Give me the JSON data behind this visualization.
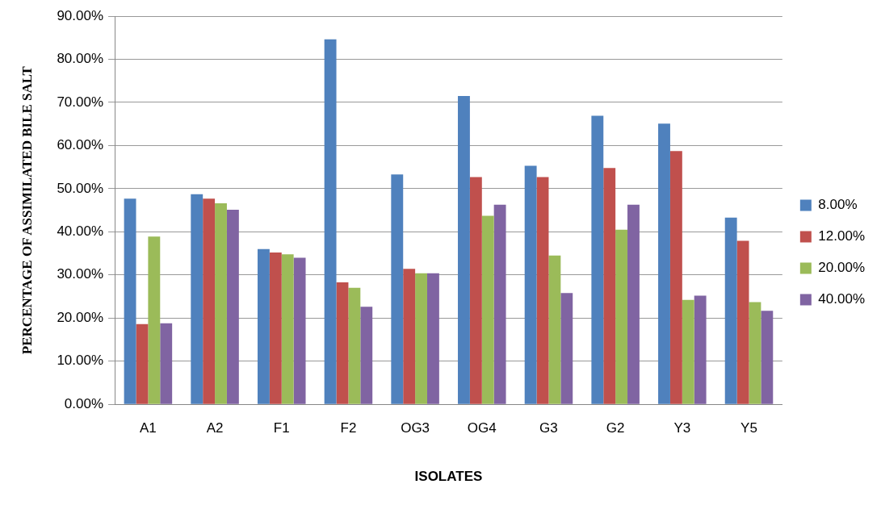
{
  "chart_data": {
    "type": "bar",
    "xlabel": "ISOLATES",
    "ylabel": "PERCENTAGE OF ASSIMILATED BILE SALT",
    "categories": [
      "A1",
      "A2",
      "F1",
      "F2",
      "OG3",
      "OG4",
      "G3",
      "G2",
      "Y3",
      "Y5"
    ],
    "series": [
      {
        "name": "8.00%",
        "color": "#4f81bd",
        "values": [
          47.7,
          48.7,
          36.0,
          84.6,
          53.3,
          71.5,
          55.3,
          66.9,
          65.1,
          43.3
        ]
      },
      {
        "name": "12.00%",
        "color": "#c0504d",
        "values": [
          18.6,
          47.7,
          35.2,
          28.3,
          31.4,
          52.7,
          52.7,
          54.8,
          58.7,
          37.9
        ]
      },
      {
        "name": "20.00%",
        "color": "#9bbb59",
        "values": [
          38.9,
          46.6,
          34.8,
          27.0,
          30.4,
          43.7,
          34.5,
          40.5,
          24.2,
          23.7
        ]
      },
      {
        "name": "40.00%",
        "color": "#8064a2",
        "values": [
          18.8,
          45.1,
          34.0,
          22.6,
          30.4,
          46.3,
          25.8,
          46.3,
          25.2,
          21.7
        ]
      }
    ],
    "ylim": [
      0,
      90
    ],
    "yticks": [
      {
        "value": 0,
        "label": "0.00%"
      },
      {
        "value": 10,
        "label": "10.00%"
      },
      {
        "value": 20,
        "label": "20.00%"
      },
      {
        "value": 30,
        "label": "30.00%"
      },
      {
        "value": 40,
        "label": "40.00%"
      },
      {
        "value": 50,
        "label": "50.00%"
      },
      {
        "value": 60,
        "label": "60.00%"
      },
      {
        "value": 70,
        "label": "70.00%"
      },
      {
        "value": 80,
        "label": "80.00%"
      },
      {
        "value": 90,
        "label": "90.00%"
      }
    ],
    "grid": "y",
    "legend": "right"
  }
}
